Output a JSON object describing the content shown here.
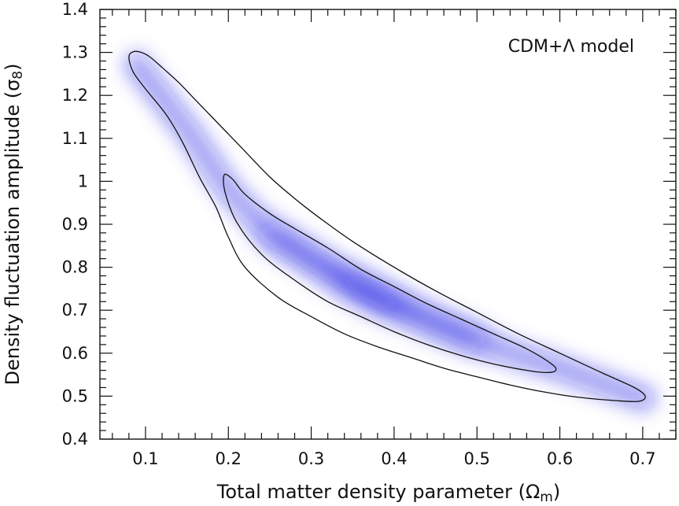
{
  "chart_data": {
    "type": "contour",
    "title": "",
    "annotation": "CDM+Λ model",
    "xlabel_main": "Total matter density parameter (",
    "xlabel_symbol": "Ω",
    "xlabel_sub": "m",
    "xlabel_close": ")",
    "ylabel_main": "Density fluctuation amplitude (",
    "ylabel_symbol": "σ",
    "ylabel_sub": "8",
    "ylabel_close": ")",
    "xlim": [
      0.045,
      0.74
    ],
    "ylim": [
      0.4,
      1.4
    ],
    "x_ticks": [
      0.1,
      0.2,
      0.3,
      0.4,
      0.5,
      0.6,
      0.7
    ],
    "x_tick_labels": [
      "0.1",
      "0.2",
      "0.3",
      "0.4",
      "0.5",
      "0.6",
      "0.7"
    ],
    "y_ticks": [
      0.4,
      0.5,
      0.6,
      0.7,
      0.8,
      0.9,
      1.0,
      1.1,
      1.2,
      1.3,
      1.4
    ],
    "y_tick_labels": [
      "0.4",
      "0.5",
      "0.6",
      "0.7",
      "0.8",
      "0.9",
      "1",
      "1.1",
      "1.2",
      "1.3",
      "1.4"
    ],
    "grid": false,
    "density_color": "#1e1ee6",
    "density_ridge": [
      {
        "x": 0.09,
        "y": 1.27
      },
      {
        "x": 0.15,
        "y": 1.12
      },
      {
        "x": 0.2,
        "y": 0.98
      },
      {
        "x": 0.25,
        "y": 0.88
      },
      {
        "x": 0.3,
        "y": 0.82
      },
      {
        "x": 0.35,
        "y": 0.76
      },
      {
        "x": 0.4,
        "y": 0.715
      },
      {
        "x": 0.45,
        "y": 0.67
      },
      {
        "x": 0.5,
        "y": 0.63
      },
      {
        "x": 0.55,
        "y": 0.595
      },
      {
        "x": 0.6,
        "y": 0.565
      },
      {
        "x": 0.65,
        "y": 0.53
      },
      {
        "x": 0.7,
        "y": 0.495
      }
    ],
    "density_peak": {
      "x": 0.37,
      "y": 0.74
    },
    "contours": [
      {
        "level": "outer",
        "points": [
          [
            0.086,
            1.302
          ],
          [
            0.095,
            1.3
          ],
          [
            0.105,
            1.29
          ],
          [
            0.12,
            1.265
          ],
          [
            0.14,
            1.23
          ],
          [
            0.16,
            1.19
          ],
          [
            0.18,
            1.15
          ],
          [
            0.2,
            1.11
          ],
          [
            0.22,
            1.07
          ],
          [
            0.25,
            1.01
          ],
          [
            0.28,
            0.96
          ],
          [
            0.31,
            0.915
          ],
          [
            0.35,
            0.86
          ],
          [
            0.4,
            0.8
          ],
          [
            0.45,
            0.745
          ],
          [
            0.5,
            0.695
          ],
          [
            0.55,
            0.645
          ],
          [
            0.6,
            0.6
          ],
          [
            0.65,
            0.555
          ],
          [
            0.69,
            0.52
          ],
          [
            0.703,
            0.5
          ],
          [
            0.695,
            0.488
          ],
          [
            0.665,
            0.49
          ],
          [
            0.62,
            0.498
          ],
          [
            0.58,
            0.51
          ],
          [
            0.54,
            0.526
          ],
          [
            0.5,
            0.545
          ],
          [
            0.46,
            0.565
          ],
          [
            0.42,
            0.59
          ],
          [
            0.38,
            0.615
          ],
          [
            0.34,
            0.645
          ],
          [
            0.3,
            0.685
          ],
          [
            0.26,
            0.73
          ],
          [
            0.22,
            0.8
          ],
          [
            0.2,
            0.87
          ],
          [
            0.185,
            0.94
          ],
          [
            0.165,
            1.01
          ],
          [
            0.145,
            1.09
          ],
          [
            0.125,
            1.155
          ],
          [
            0.1,
            1.215
          ],
          [
            0.085,
            1.255
          ],
          [
            0.08,
            1.29
          ]
        ]
      },
      {
        "level": "inner",
        "points": [
          [
            0.195,
            1.015
          ],
          [
            0.205,
            1.005
          ],
          [
            0.22,
            0.97
          ],
          [
            0.25,
            0.925
          ],
          [
            0.28,
            0.89
          ],
          [
            0.32,
            0.845
          ],
          [
            0.36,
            0.795
          ],
          [
            0.4,
            0.755
          ],
          [
            0.44,
            0.715
          ],
          [
            0.48,
            0.68
          ],
          [
            0.52,
            0.645
          ],
          [
            0.56,
            0.61
          ],
          [
            0.59,
            0.575
          ],
          [
            0.595,
            0.56
          ],
          [
            0.585,
            0.555
          ],
          [
            0.56,
            0.56
          ],
          [
            0.52,
            0.575
          ],
          [
            0.48,
            0.595
          ],
          [
            0.44,
            0.62
          ],
          [
            0.4,
            0.65
          ],
          [
            0.36,
            0.685
          ],
          [
            0.32,
            0.72
          ],
          [
            0.28,
            0.77
          ],
          [
            0.24,
            0.83
          ],
          [
            0.21,
            0.905
          ],
          [
            0.196,
            0.975
          ]
        ]
      }
    ]
  }
}
